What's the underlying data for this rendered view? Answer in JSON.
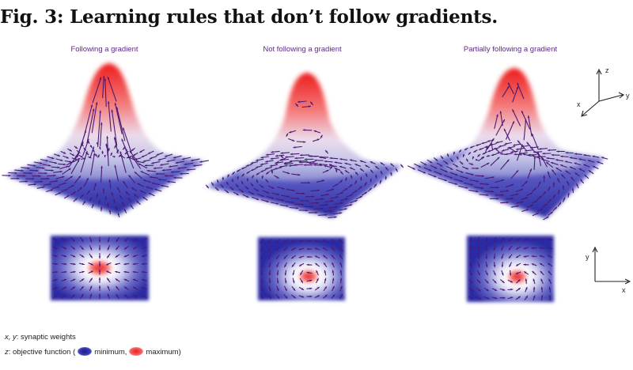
{
  "figure": {
    "title": "Fig. 3: Learning rules that don’t follow gradients."
  },
  "panels": [
    {
      "title": "Following a gradient",
      "mode": "gradient"
    },
    {
      "title": "Not following a gradient",
      "mode": "rotation"
    },
    {
      "title": "Partially following a gradient",
      "mode": "mixed"
    }
  ],
  "axes3d": {
    "x": "x",
    "y": "y",
    "z": "z"
  },
  "axes2d": {
    "x": "x",
    "y": "y"
  },
  "legend": {
    "line1_vars": "x, y",
    "line1_text": ": synaptic weights",
    "line2_var": "z",
    "line2_text": ": objective function (",
    "minimum": "minimum,",
    "maximum": "maximum)"
  },
  "colors": {
    "title_text": "#5b2a86",
    "arrow": "#4a1a72",
    "minimum": "#2a2a9a",
    "maximum": "#ee2a2a"
  }
}
